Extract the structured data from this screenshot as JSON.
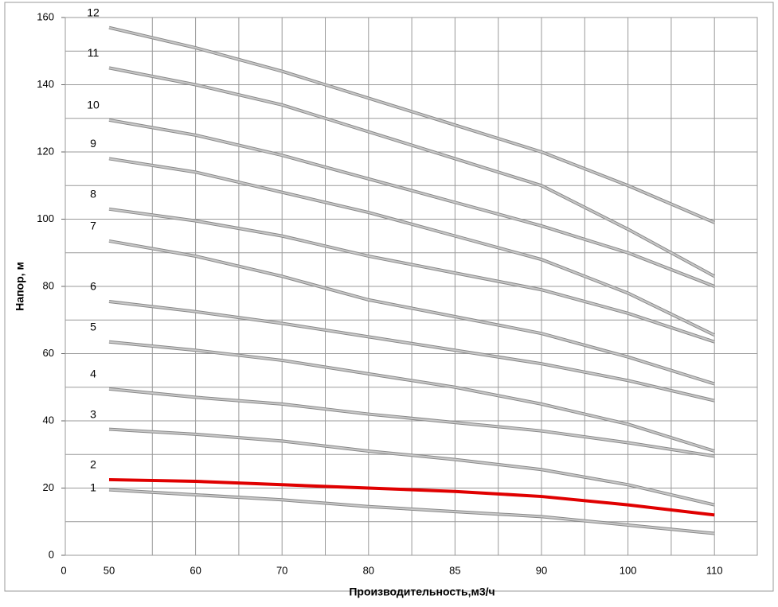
{
  "chart_data": {
    "type": "line",
    "xlabel": "Производительность,м3/ч",
    "ylabel": "Напор, м",
    "categories": [
      "0",
      "50",
      "60",
      "70",
      "80",
      "85",
      "90",
      "100",
      "110"
    ],
    "ylim": [
      0,
      160
    ],
    "yticks": [
      0,
      20,
      40,
      60,
      80,
      100,
      120,
      140,
      160
    ],
    "yminorticks": [
      10,
      30,
      50,
      70,
      90,
      110,
      130,
      150
    ],
    "grid": true,
    "series": [
      {
        "name": "1",
        "color": "#c8c8c8",
        "values": [
          null,
          19.5,
          18,
          16.5,
          14.5,
          13,
          11.5,
          9,
          6.5
        ]
      },
      {
        "name": "2",
        "color": "#e00000",
        "values": [
          null,
          22.5,
          22,
          21,
          20,
          19,
          17.5,
          15,
          12
        ]
      },
      {
        "name": "3",
        "color": "#c8c8c8",
        "values": [
          null,
          37.5,
          36,
          34,
          31,
          28.5,
          25.5,
          21,
          15
        ]
      },
      {
        "name": "4",
        "color": "#c8c8c8",
        "values": [
          null,
          49.5,
          47,
          45,
          42,
          39.5,
          37,
          33.5,
          29.5
        ]
      },
      {
        "name": "5",
        "color": "#c8c8c8",
        "values": [
          null,
          63.5,
          61,
          58,
          54,
          50,
          45,
          39,
          31
        ]
      },
      {
        "name": "6",
        "color": "#c8c8c8",
        "values": [
          null,
          75.5,
          72.5,
          69,
          65,
          61,
          57,
          52,
          46
        ]
      },
      {
        "name": "7",
        "color": "#c8c8c8",
        "values": [
          null,
          93.5,
          89,
          83,
          76,
          71,
          66,
          59,
          51
        ]
      },
      {
        "name": "8",
        "color": "#c8c8c8",
        "values": [
          null,
          103,
          99.5,
          95,
          89,
          84,
          79,
          72,
          63.5
        ]
      },
      {
        "name": "9",
        "color": "#c8c8c8",
        "values": [
          null,
          118,
          114,
          108,
          102,
          95,
          88,
          78,
          65.5
        ]
      },
      {
        "name": "10",
        "color": "#c8c8c8",
        "values": [
          null,
          129.5,
          125,
          119,
          112,
          105,
          98,
          90,
          80
        ]
      },
      {
        "name": "11",
        "color": "#c8c8c8",
        "values": [
          null,
          145,
          140,
          134,
          126,
          118,
          110,
          97,
          83
        ]
      },
      {
        "name": "12",
        "color": "#c8c8c8",
        "values": [
          null,
          157,
          151,
          144,
          136,
          128,
          120,
          110,
          99
        ]
      }
    ]
  }
}
